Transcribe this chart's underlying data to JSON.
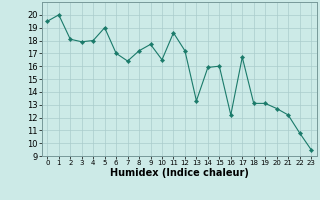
{
  "x": [
    0,
    1,
    2,
    3,
    4,
    5,
    6,
    7,
    8,
    9,
    10,
    11,
    12,
    13,
    14,
    15,
    16,
    17,
    18,
    19,
    20,
    21,
    22,
    23
  ],
  "y": [
    19.5,
    20.0,
    18.1,
    17.9,
    18.0,
    19.0,
    17.0,
    16.4,
    17.2,
    17.7,
    16.5,
    18.6,
    17.2,
    13.3,
    15.9,
    16.0,
    12.2,
    16.7,
    13.1,
    13.1,
    12.7,
    12.2,
    10.8,
    9.5
  ],
  "line_color": "#1a7a6a",
  "marker": "D",
  "marker_size": 2.2,
  "bg_color": "#cceae7",
  "grid_color": "#aacccc",
  "xlabel": "Humidex (Indice chaleur)",
  "ylim": [
    9,
    21
  ],
  "xlim": [
    -0.5,
    23.5
  ],
  "yticks": [
    9,
    10,
    11,
    12,
    13,
    14,
    15,
    16,
    17,
    18,
    19,
    20
  ],
  "xticks": [
    0,
    1,
    2,
    3,
    4,
    5,
    6,
    7,
    8,
    9,
    10,
    11,
    12,
    13,
    14,
    15,
    16,
    17,
    18,
    19,
    20,
    21,
    22,
    23
  ],
  "xlabel_fontsize": 7,
  "ytick_fontsize": 6,
  "xtick_fontsize": 5
}
